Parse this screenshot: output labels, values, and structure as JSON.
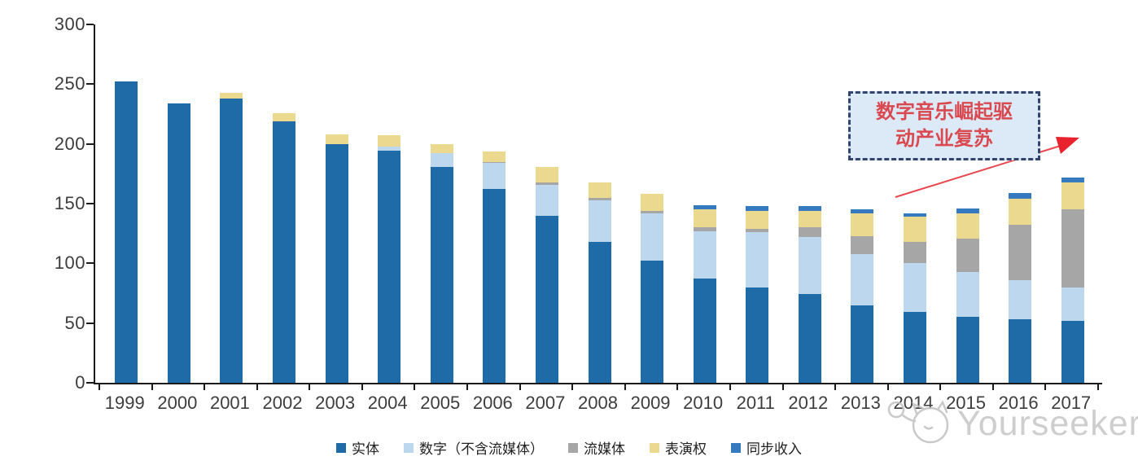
{
  "chart_data": {
    "type": "bar",
    "stacked": true,
    "title": "",
    "xlabel": "",
    "ylabel": "",
    "categories": [
      "1999",
      "2000",
      "2001",
      "2002",
      "2003",
      "2004",
      "2005",
      "2006",
      "2007",
      "2008",
      "2009",
      "2010",
      "2011",
      "2012",
      "2013",
      "2014",
      "2015",
      "2016",
      "2017"
    ],
    "series": [
      {
        "name": "实体",
        "color": "#1F6BA8",
        "values": [
          252,
          234,
          238,
          219,
          200,
          194,
          181,
          162,
          140,
          118,
          102,
          87,
          80,
          74,
          65,
          59,
          55,
          53,
          52
        ]
      },
      {
        "name": "数字（不含流媒体）",
        "color": "#BDD7EE",
        "values": [
          0,
          0,
          0,
          0,
          0,
          4,
          11,
          22,
          26,
          35,
          40,
          40,
          46,
          48,
          43,
          41,
          38,
          33,
          28
        ]
      },
      {
        "name": "流媒体",
        "color": "#A6A6A6",
        "values": [
          0,
          0,
          0,
          0,
          0,
          0,
          0,
          1,
          2,
          2,
          2,
          3,
          3,
          8,
          15,
          18,
          28,
          46,
          65
        ]
      },
      {
        "name": "表演权",
        "color": "#EBD98F",
        "values": [
          0,
          0,
          5,
          7,
          8,
          9,
          8,
          9,
          13,
          13,
          14,
          15,
          15,
          14,
          19,
          21,
          21,
          22,
          23
        ]
      },
      {
        "name": "同步收入",
        "color": "#3579BE",
        "values": [
          0,
          0,
          0,
          0,
          0,
          0,
          0,
          0,
          0,
          0,
          0,
          4,
          4,
          4,
          3,
          3,
          4,
          5,
          4
        ]
      }
    ],
    "ylim": [
      0,
      300
    ],
    "yticks": [
      0,
      50,
      100,
      150,
      200,
      250,
      300
    ],
    "grid": false,
    "legend_position": "bottom"
  },
  "annotation": {
    "line1": "数字音乐崛起驱",
    "line2": "动产业复苏",
    "full_text": "数字音乐崛起驱动产业复苏",
    "box_fill": "#DCE9F7",
    "box_border": "#31456E",
    "text_color": "#D9494F",
    "arrow_color": "#E8474F"
  },
  "watermark": {
    "text": "Yourseeker",
    "color": "#c6c6c6"
  }
}
